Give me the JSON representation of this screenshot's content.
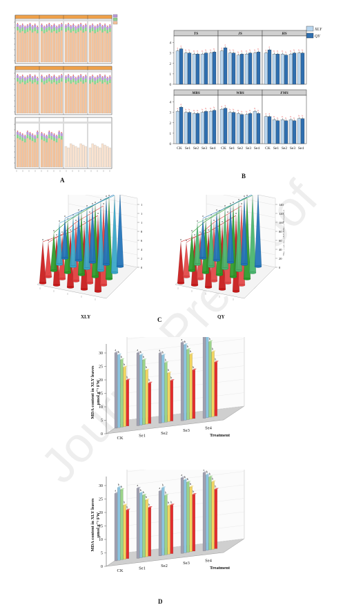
{
  "panel_labels": {
    "a": "A",
    "b": "B",
    "c": "C",
    "d": "D"
  },
  "watermark": "Journal Pre-proof",
  "colors": {
    "peach": "#f6c39a",
    "green": "#8fd28f",
    "purple": "#b99ad9",
    "orange_band": "#f0a24a",
    "xly_bar": "#b9d6ef",
    "qy_bar": "#2f6fb0",
    "red_letter": "#d22",
    "cone_red": "#c81818",
    "cone_green": "#2a9a2a",
    "cone_blue": "#1f72b8"
  },
  "panel_b": {
    "legend": [
      "XLY",
      "QY"
    ],
    "facets_top": [
      "TS",
      "JS",
      "HS"
    ],
    "facets_bottom": [
      "MRS",
      "WRS",
      "FMS"
    ],
    "x_ticks": [
      "CK",
      "Se1",
      "Se2",
      "Se3",
      "Se4"
    ],
    "y_ticks": [
      "0",
      "1",
      "2",
      "3",
      "4"
    ]
  },
  "panel_c": {
    "left_caption": "XLY",
    "right_caption": "QY",
    "z_axis_label": "The activity of SeRPase (U/g/min)",
    "z_ticks": [
      "0",
      "20",
      "40",
      "60",
      "80",
      "100",
      "120",
      "140"
    ]
  },
  "panel_d": {
    "ylabel_line1": "MDA content in XLY leaves",
    "ylabel_line2": "μmol g⁻¹ FW",
    "xlabel": "Treatment",
    "x_ticks": [
      "CK",
      "Se1",
      "Se2",
      "Se3",
      "Se4"
    ],
    "y_ticks_top": [
      "0",
      "5",
      "10",
      "15",
      "20",
      "25",
      "30"
    ],
    "y_ticks_bottom": [
      "0",
      "5",
      "10",
      "15",
      "20",
      "25",
      "30"
    ]
  },
  "chart_data": [
    {
      "type": "bar",
      "panel": "B",
      "facets": [
        "TS",
        "JS",
        "HS",
        "MRS",
        "WRS",
        "FMS"
      ],
      "categories": [
        "CK",
        "Se1",
        "Se2",
        "Se3",
        "Se4"
      ],
      "series": [
        {
          "name": "XLY",
          "values_by_facet": [
            [
              3.2,
              3.0,
              2.9,
              2.9,
              3.0
            ],
            [
              3.2,
              3.0,
              2.8,
              2.9,
              3.0
            ],
            [
              3.0,
              2.9,
              2.9,
              2.9,
              3.0
            ],
            [
              3.1,
              3.0,
              2.9,
              3.0,
              3.1
            ],
            [
              3.3,
              3.0,
              2.9,
              2.8,
              3.1
            ],
            [
              2.6,
              2.3,
              2.3,
              2.3,
              2.4
            ]
          ]
        },
        {
          "name": "QY",
          "values_by_facet": [
            [
              3.4,
              3.0,
              2.9,
              3.0,
              3.1
            ],
            [
              3.5,
              3.0,
              2.9,
              3.0,
              3.1
            ],
            [
              3.3,
              2.9,
              2.8,
              3.0,
              3.0
            ],
            [
              3.5,
              3.0,
              2.9,
              3.1,
              3.2
            ],
            [
              3.4,
              3.0,
              2.8,
              2.9,
              2.9
            ],
            [
              2.6,
              2.2,
              2.2,
              2.2,
              2.4
            ]
          ]
        }
      ],
      "ylim": [
        0,
        4.5
      ]
    },
    {
      "type": "bar",
      "panel": "D-top",
      "categories": [
        "CK",
        "Se1",
        "Se2",
        "Se3",
        "Se4"
      ],
      "series_values": [
        [
          28,
          27,
          25,
          22,
          17
        ],
        [
          27,
          26,
          24,
          20,
          15
        ],
        [
          26,
          25,
          22,
          18,
          15
        ],
        [
          29,
          28,
          26,
          24,
          18
        ],
        [
          31,
          30,
          28,
          24,
          20
        ]
      ],
      "ylim": [
        0,
        30
      ]
    },
    {
      "type": "bar",
      "panel": "D-bottom",
      "categories": [
        "CK",
        "Se1",
        "Se2",
        "Se3",
        "Se4"
      ],
      "series_values": [
        [
          25,
          27,
          26,
          20,
          18
        ],
        [
          26,
          24,
          23,
          21,
          18
        ],
        [
          24,
          25,
          22,
          18,
          18
        ],
        [
          28,
          27,
          26,
          24,
          21
        ],
        [
          29,
          28,
          27,
          25,
          22
        ]
      ],
      "ylim": [
        0,
        30
      ]
    }
  ]
}
